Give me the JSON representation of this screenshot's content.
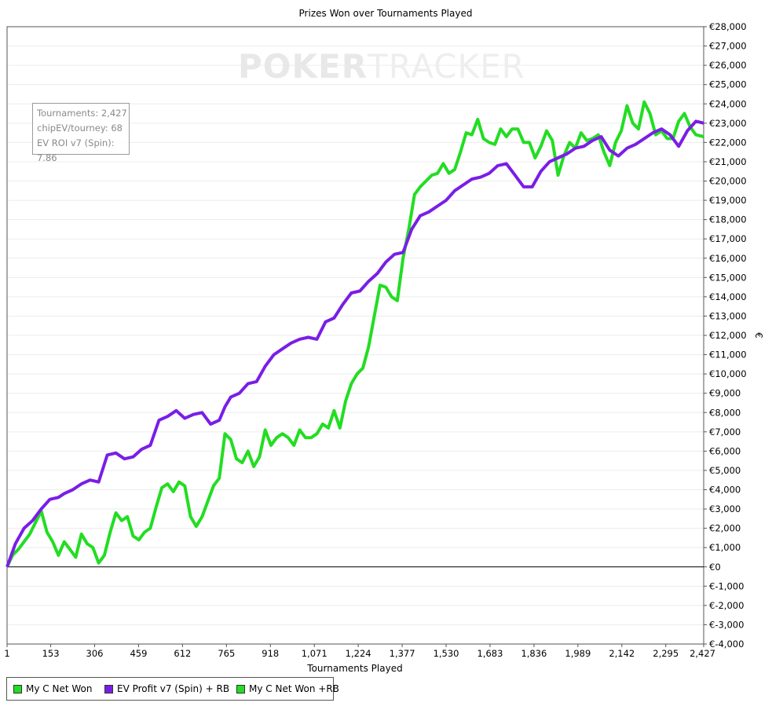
{
  "watermark": {
    "part1": "POKER",
    "part2": "TRACKER"
  },
  "stats": {
    "tournaments": "Tournaments: 2,427",
    "chipev": "chipEV/tourney: 68",
    "evroi": "EV ROI v7 (Spin): 7.86"
  },
  "chart_data": {
    "type": "line",
    "title": "Prizes Won over Tournaments Played",
    "xlabel": "Tournaments Played",
    "ylabel": "€",
    "xlim": [
      1,
      2427
    ],
    "ylim": [
      -4000,
      28000
    ],
    "x_ticks": [
      "1",
      "153",
      "306",
      "459",
      "612",
      "765",
      "918",
      "1,071",
      "1,224",
      "1,377",
      "1,530",
      "1,683",
      "1,836",
      "1,989",
      "2,142",
      "2,295",
      "2,427"
    ],
    "x_tick_values": [
      1,
      153,
      306,
      459,
      612,
      765,
      918,
      1071,
      1224,
      1377,
      1530,
      1683,
      1836,
      1989,
      2142,
      2295,
      2427
    ],
    "y_ticks": [
      "€-4,000",
      "€-3,000",
      "€-2,000",
      "€-1,000",
      "€0",
      "€1,000",
      "€2,000",
      "€3,000",
      "€4,000",
      "€5,000",
      "€6,000",
      "€7,000",
      "€8,000",
      "€9,000",
      "€10,000",
      "€11,000",
      "€12,000",
      "€13,000",
      "€14,000",
      "€15,000",
      "€16,000",
      "€17,000",
      "€18,000",
      "€19,000",
      "€20,000",
      "€21,000",
      "€22,000",
      "€23,000",
      "€24,000",
      "€25,000",
      "€26,000",
      "€27,000",
      "€28,000"
    ],
    "y_tick_values": [
      -4000,
      -3000,
      -2000,
      -1000,
      0,
      1000,
      2000,
      3000,
      4000,
      5000,
      6000,
      7000,
      8000,
      9000,
      10000,
      11000,
      12000,
      13000,
      14000,
      15000,
      16000,
      17000,
      18000,
      19000,
      20000,
      21000,
      22000,
      23000,
      24000,
      25000,
      26000,
      27000,
      28000
    ],
    "grid": true,
    "legend_position": "bottom-left",
    "series": [
      {
        "name": "My C Net Won",
        "color": "#22dd22",
        "x": [],
        "y": []
      },
      {
        "name": "EV Profit v7 (Spin) + RB",
        "color": "#7a1ee6",
        "x": [
          1,
          30,
          60,
          90,
          120,
          150,
          180,
          200,
          230,
          260,
          290,
          320,
          350,
          380,
          410,
          440,
          470,
          500,
          530,
          560,
          590,
          620,
          650,
          680,
          710,
          740,
          760,
          780,
          810,
          840,
          870,
          900,
          930,
          960,
          990,
          1020,
          1050,
          1080,
          1110,
          1140,
          1170,
          1200,
          1230,
          1260,
          1290,
          1320,
          1350,
          1380,
          1410,
          1440,
          1470,
          1500,
          1530,
          1560,
          1590,
          1620,
          1650,
          1680,
          1710,
          1740,
          1770,
          1800,
          1830,
          1860,
          1890,
          1920,
          1950,
          1980,
          2010,
          2040,
          2070,
          2100,
          2130,
          2160,
          2190,
          2220,
          2250,
          2280,
          2310,
          2340,
          2370,
          2400,
          2427
        ],
        "y": [
          0,
          1200,
          2000,
          2400,
          3000,
          3500,
          3600,
          3800,
          4000,
          4300,
          4500,
          4400,
          5800,
          5900,
          5600,
          5700,
          6100,
          6300,
          7600,
          7800,
          8100,
          7700,
          7900,
          8000,
          7400,
          7600,
          8300,
          8800,
          9000,
          9500,
          9600,
          10400,
          11000,
          11300,
          11600,
          11800,
          11900,
          11800,
          12700,
          12900,
          13600,
          14200,
          14300,
          14800,
          15200,
          15800,
          16200,
          16300,
          17500,
          18200,
          18400,
          18700,
          19000,
          19500,
          19800,
          20100,
          20200,
          20400,
          20800,
          20900,
          20300,
          19700,
          19700,
          20500,
          21000,
          21200,
          21400,
          21700,
          21800,
          22100,
          22300,
          21600,
          21300,
          21700,
          21900,
          22200,
          22500,
          22700,
          22400,
          21800,
          22600,
          23100,
          23000
        ]
      },
      {
        "name": "My C Net Won +RB",
        "color": "#22dd22",
        "x": [
          1,
          20,
          40,
          60,
          80,
          100,
          120,
          140,
          160,
          180,
          200,
          220,
          240,
          260,
          280,
          300,
          320,
          340,
          360,
          380,
          400,
          420,
          440,
          460,
          480,
          500,
          520,
          540,
          560,
          580,
          600,
          620,
          640,
          660,
          680,
          700,
          720,
          740,
          760,
          780,
          800,
          820,
          840,
          860,
          880,
          900,
          920,
          940,
          960,
          980,
          1000,
          1020,
          1040,
          1060,
          1080,
          1100,
          1120,
          1140,
          1160,
          1180,
          1200,
          1220,
          1240,
          1260,
          1280,
          1300,
          1320,
          1340,
          1360,
          1380,
          1400,
          1420,
          1440,
          1460,
          1480,
          1500,
          1520,
          1540,
          1560,
          1580,
          1600,
          1620,
          1640,
          1660,
          1680,
          1700,
          1720,
          1740,
          1760,
          1780,
          1800,
          1820,
          1840,
          1860,
          1880,
          1900,
          1920,
          1940,
          1960,
          1980,
          2000,
          2020,
          2040,
          2060,
          2080,
          2100,
          2120,
          2140,
          2160,
          2180,
          2200,
          2220,
          2240,
          2260,
          2280,
          2300,
          2320,
          2340,
          2360,
          2380,
          2400,
          2427
        ],
        "y": [
          0,
          600,
          900,
          1300,
          1700,
          2300,
          2900,
          1800,
          1300,
          600,
          1300,
          900,
          500,
          1700,
          1200,
          1000,
          200,
          600,
          1800,
          2800,
          2400,
          2600,
          1600,
          1400,
          1800,
          2000,
          3100,
          4100,
          4300,
          3900,
          4400,
          4200,
          2600,
          2100,
          2600,
          3400,
          4200,
          4600,
          6900,
          6600,
          5600,
          5400,
          6000,
          5200,
          5700,
          7100,
          6300,
          6700,
          6900,
          6700,
          6300,
          7100,
          6700,
          6700,
          6900,
          7400,
          7200,
          8100,
          7200,
          8600,
          9500,
          10000,
          10300,
          11400,
          13000,
          14600,
          14500,
          14000,
          13800,
          16000,
          17500,
          19300,
          19700,
          20000,
          20300,
          20400,
          20900,
          20400,
          20600,
          21500,
          22500,
          22400,
          23200,
          22200,
          22000,
          21900,
          22700,
          22300,
          22700,
          22700,
          22000,
          22000,
          21200,
          21800,
          22600,
          22100,
          20300,
          21300,
          22000,
          21700,
          22500,
          22100,
          22200,
          22400,
          21500,
          20800,
          22000,
          22600,
          23900,
          23000,
          22700,
          24100,
          23500,
          22400,
          22600,
          22200,
          22200,
          23100,
          23500,
          22800,
          22400,
          22300
        ]
      }
    ]
  }
}
